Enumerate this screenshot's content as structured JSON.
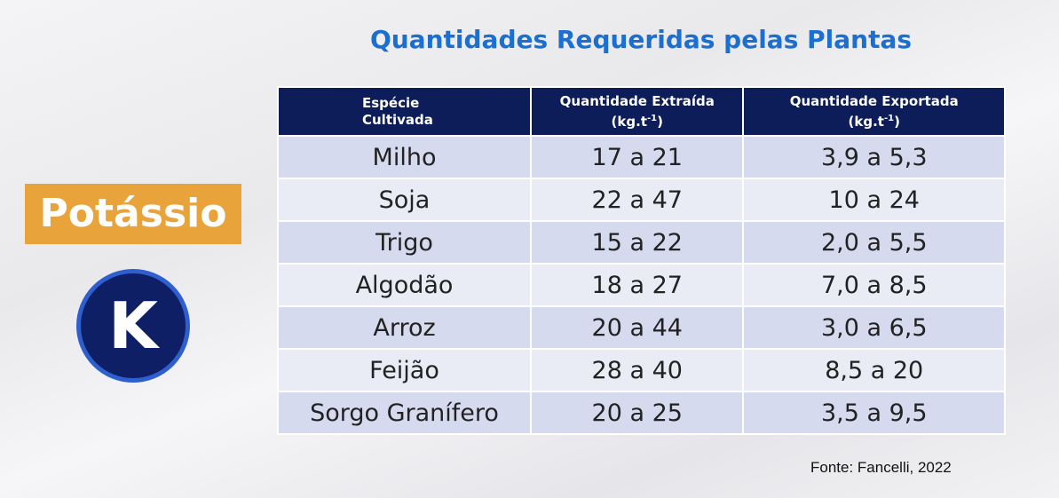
{
  "title": "Quantidades Requeridas pelas Plantas",
  "label": "Potássio",
  "badge": "K",
  "table": {
    "header": [
      {
        "lines": [
          "Espécie",
          "Cultivada"
        ]
      },
      {
        "lines": [
          "Quantidade Extraída"
        ],
        "unit": "(kg.t",
        "exponent": "-1",
        "unit_end": ")"
      },
      {
        "lines": [
          "Quantidade Exportada"
        ],
        "unit": "(kg.t",
        "exponent": "-1",
        "unit_end": ")"
      }
    ],
    "rows": [
      [
        "Milho",
        "17 a 21",
        "3,9 a 5,3"
      ],
      [
        "Soja",
        "22 a 47",
        "10 a 24"
      ],
      [
        "Trigo",
        "15 a 22",
        "2,0 a 5,5"
      ],
      [
        "Algodão",
        "18 a 27",
        "7,0 a 8,5"
      ],
      [
        "Arroz",
        "20 a 44",
        "3,0 a 6,5"
      ],
      [
        "Feijão",
        "28 a 40",
        "8,5 a 20"
      ],
      [
        "Sorgo Granífero",
        "20 a 25",
        "3,5 a 9,5"
      ]
    ]
  },
  "source": "Fonte: Fancelli, 2022"
}
